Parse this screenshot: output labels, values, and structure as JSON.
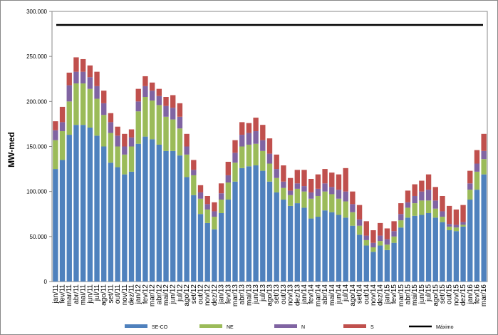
{
  "chart_data": {
    "type": "stacked_bar",
    "y_label": "MW-med",
    "categories": [
      "jan/11",
      "fev/11",
      "mar/11",
      "abr/11",
      "mai/11",
      "jun/11",
      "jul/11",
      "ago/11",
      "set/11",
      "out/11",
      "nov/11",
      "dez/11",
      "jan/12",
      "fev/12",
      "mar/12",
      "abr/12",
      "mai/12",
      "jun/12",
      "jul/12",
      "ago/12",
      "set/12",
      "out/12",
      "nov/12",
      "dez/12",
      "jan/13",
      "fev/13",
      "mar/13",
      "abr/13",
      "mai/13",
      "jun/13",
      "jul/13",
      "ago/13",
      "set/13",
      "out/13",
      "nov/13",
      "dez/13",
      "jan/14",
      "fev/14",
      "mar/14",
      "abr/14",
      "mai/14",
      "jun/14",
      "jul/14",
      "ago/14",
      "set/14",
      "out/14",
      "nov/14",
      "dez/14",
      "jan/15",
      "fev/15",
      "mar/15",
      "abr/15",
      "mai/15",
      "jun/15",
      "jul/15",
      "ago/15",
      "set/15",
      "out/15",
      "nov/15",
      "dez/15",
      "jan/16",
      "fev/16",
      "mar/16"
    ],
    "series": [
      {
        "name": "SE-CO",
        "color": "#4f81bd",
        "values": [
          125000,
          135000,
          163000,
          174000,
          174000,
          171000,
          162000,
          150000,
          132000,
          127000,
          119000,
          122000,
          153000,
          161000,
          158000,
          152000,
          145000,
          145000,
          140000,
          116000,
          96000,
          75000,
          65000,
          58000,
          76000,
          91000,
          111000,
          126000,
          128000,
          129000,
          123000,
          111000,
          99000,
          91000,
          84000,
          87000,
          82000,
          70000,
          72000,
          79000,
          77000,
          74000,
          71000,
          62000,
          52000,
          40000,
          33000,
          40000,
          35000,
          43000,
          60000,
          71000,
          73000,
          74000,
          76000,
          71000,
          66000,
          57000,
          56000,
          61000,
          91000,
          102000,
          119000
        ]
      },
      {
        "name": "NE",
        "color": "#9bbb59",
        "values": [
          32000,
          32000,
          37000,
          46000,
          46000,
          43000,
          41000,
          35000,
          33000,
          23000,
          22000,
          28000,
          36000,
          44000,
          43000,
          44000,
          38000,
          35000,
          30000,
          25000,
          22000,
          17000,
          15000,
          14000,
          15000,
          19000,
          21000,
          24000,
          24000,
          24000,
          22000,
          20000,
          16000,
          13000,
          12000,
          16000,
          18000,
          22000,
          23000,
          21000,
          20000,
          18000,
          18000,
          15000,
          10000,
          6000,
          5000,
          5000,
          6000,
          7000,
          8000,
          11000,
          14000,
          16000,
          14000,
          10000,
          6000,
          4000,
          4000,
          2000,
          11000,
          20000,
          17000
        ]
      },
      {
        "name": "N",
        "color": "#8064a2",
        "values": [
          11000,
          10000,
          18000,
          13000,
          13000,
          13000,
          14000,
          13000,
          12000,
          12000,
          9000,
          10000,
          11000,
          12000,
          11000,
          10000,
          12000,
          13000,
          13000,
          9000,
          6000,
          7000,
          6000,
          6000,
          7000,
          8000,
          11000,
          13000,
          13000,
          14000,
          12000,
          11000,
          10000,
          7000,
          5000,
          6000,
          6000,
          7000,
          8000,
          9000,
          8000,
          10000,
          11000,
          9000,
          7000,
          5000,
          5000,
          6000,
          6000,
          6000,
          7000,
          6000,
          8000,
          10000,
          12000,
          9000,
          6000,
          3000,
          3000,
          3000,
          7000,
          9000,
          9000
        ]
      },
      {
        "name": "S",
        "color": "#c0504d",
        "values": [
          10000,
          17000,
          14000,
          16000,
          14000,
          13000,
          16000,
          14000,
          10000,
          10000,
          14000,
          9000,
          14000,
          11000,
          9000,
          8000,
          10000,
          14000,
          15000,
          14000,
          11000,
          8000,
          9000,
          10000,
          11000,
          15000,
          14000,
          14000,
          11000,
          15000,
          17000,
          17000,
          16000,
          18000,
          14000,
          15000,
          18000,
          15000,
          16000,
          16000,
          16000,
          17000,
          26000,
          14000,
          16000,
          16000,
          14000,
          14000,
          12000,
          11000,
          12000,
          13000,
          13000,
          12000,
          17000,
          15000,
          17000,
          20000,
          17000,
          19000,
          14000,
          15000,
          19000
        ]
      }
    ],
    "max_line": {
      "name": "Máximo",
      "value": 285000,
      "color": "#000000"
    },
    "ylim": [
      0,
      300000
    ],
    "yticks": [
      0,
      {
        "value": 50000,
        "label": "50.000"
      },
      {
        "value": 100000,
        "label": "100.000"
      },
      {
        "value": 150000,
        "label": "150.000"
      },
      {
        "value": 200000,
        "label": "200.000"
      },
      {
        "value": 250000,
        "label": "250.000"
      },
      {
        "value": 300000,
        "label": "300.000"
      }
    ],
    "grid": false
  }
}
